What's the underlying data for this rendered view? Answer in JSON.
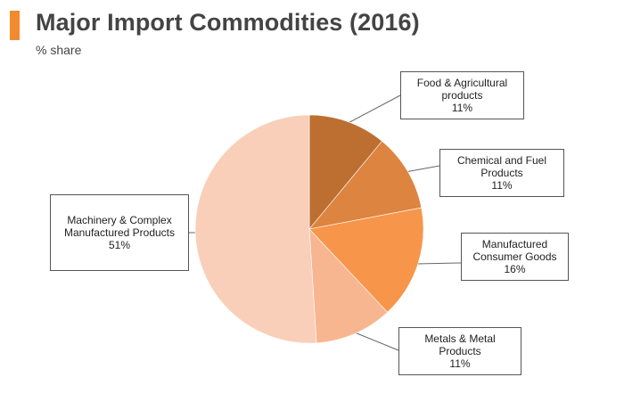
{
  "header": {
    "title": "Major Import Commodities (2016)",
    "subtitle": "% share",
    "accent_color": "#f28b30"
  },
  "chart_data": {
    "type": "pie",
    "title": "Major Import Commodities (2016)",
    "subtitle": "% share",
    "unit": "%",
    "start_angle_deg": 0,
    "direction": "clockwise",
    "slices": [
      {
        "name": "Food & Agricultural products",
        "label_lines": [
          "Food & Agricultural",
          "products"
        ],
        "value": 11,
        "value_label": "11%",
        "color": "#bd6e31"
      },
      {
        "name": "Chemical and Fuel Products",
        "label_lines": [
          "Chemical and Fuel",
          "Products"
        ],
        "value": 11,
        "value_label": "11%",
        "color": "#dd8440"
      },
      {
        "name": "Manufactured Consumer Goods",
        "label_lines": [
          "Manufactured",
          "Consumer Goods"
        ],
        "value": 16,
        "value_label": "16%",
        "color": "#f7964a"
      },
      {
        "name": "Metals & Metal Products",
        "label_lines": [
          "Metals & Metal",
          "Products"
        ],
        "value": 11,
        "value_label": "11%",
        "color": "#f8b690"
      },
      {
        "name": "Machinery & Complex Manufactured Products",
        "label_lines": [
          "Machinery & Complex",
          "Manufactured Products"
        ],
        "value": 51,
        "value_label": "51%",
        "color": "#f9cfb9"
      }
    ]
  }
}
